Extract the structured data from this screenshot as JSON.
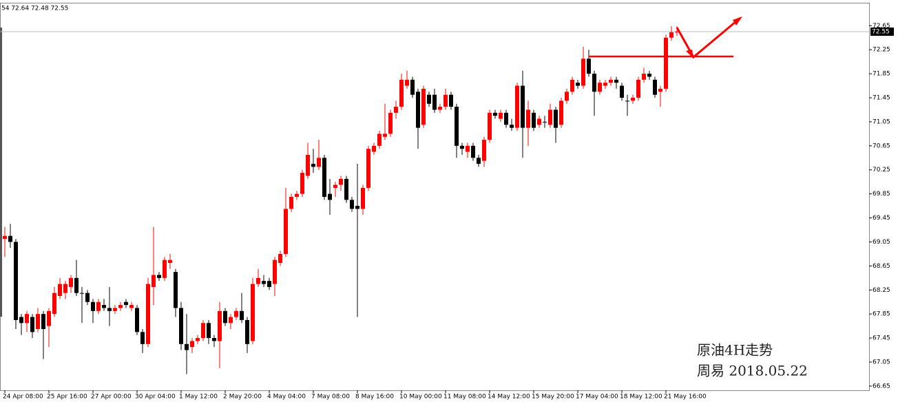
{
  "chart_data": {
    "type": "candlestick",
    "ohlc_label": "54 72.64 72.48 72.55",
    "annotations": [
      "原油4H走势",
      "周易  2018.05.22"
    ],
    "up_color": "#ff0000",
    "down_color": "#000000",
    "current_price": 72.55,
    "ylim": [
      66.58,
      73.02
    ],
    "yticks": [
      72.65,
      72.25,
      71.85,
      71.45,
      71.05,
      70.65,
      70.25,
      69.85,
      69.45,
      69.05,
      68.65,
      68.25,
      67.85,
      67.45,
      67.05,
      66.65
    ],
    "categories": [
      "24 Apr 08:00",
      null,
      null,
      null,
      null,
      null,
      null,
      null,
      "25 Apr 16:00",
      null,
      null,
      null,
      null,
      null,
      null,
      null,
      "27 Apr 00:00",
      null,
      null,
      null,
      null,
      null,
      null,
      null,
      "30 Apr 04:00",
      null,
      null,
      null,
      null,
      null,
      null,
      null,
      "1 May 12:00",
      null,
      null,
      null,
      null,
      null,
      null,
      null,
      "2 May 20:00",
      null,
      null,
      null,
      null,
      null,
      null,
      null,
      "4 May 04:00",
      null,
      null,
      null,
      null,
      null,
      null,
      null,
      "7 May 08:00",
      null,
      null,
      null,
      null,
      null,
      null,
      null,
      "8 May 16:00",
      null,
      null,
      null,
      null,
      null,
      null,
      null,
      "10 May 00:00",
      null,
      null,
      null,
      null,
      null,
      null,
      null,
      "11 May 08:00",
      null,
      null,
      null,
      null,
      null,
      null,
      null,
      "14 May 12:00",
      null,
      null,
      null,
      null,
      null,
      null,
      null,
      "15 May 20:00",
      null,
      null,
      null,
      null,
      null,
      null,
      null,
      "17 May 04:00",
      null,
      null,
      null,
      null,
      null,
      null,
      null,
      "18 May 12:00",
      null,
      null,
      null,
      null,
      null,
      null,
      null,
      "21 May 16:00",
      null,
      null
    ],
    "open": [
      69.1,
      69.15,
      69.05,
      67.8,
      67.7,
      67.8,
      67.6,
      67.85,
      67.65,
      67.85,
      68.15,
      68.2,
      68.3,
      68.45,
      68.2,
      68.2,
      68.05,
      67.9,
      68.0,
      67.95,
      67.9,
      67.95,
      68.05,
      67.95,
      67.95,
      67.55,
      67.35,
      68.3,
      68.5,
      68.45,
      68.7,
      68.55,
      67.95,
      67.35,
      67.3,
      67.4,
      67.45,
      67.7,
      67.45,
      67.4,
      67.9,
      67.7,
      67.8,
      67.9,
      67.75,
      67.4,
      68.35,
      68.4,
      68.4,
      68.35,
      68.7,
      68.85,
      69.6,
      69.8,
      69.85,
      70.15,
      70.35,
      70.3,
      70.45,
      69.85,
      69.95,
      70.0,
      70.1,
      69.75,
      69.65,
      69.6,
      69.95,
      70.55,
      70.65,
      70.8,
      70.85,
      71.2,
      71.3,
      71.65,
      71.75,
      71.55,
      71.0,
      71.5,
      71.5,
      71.25,
      71.3,
      71.5,
      71.3,
      70.65,
      70.55,
      70.65,
      70.45,
      70.4,
      70.75,
      71.2,
      71.1,
      71.2,
      71.0,
      70.95,
      71.65,
      70.95,
      71.2,
      71.0,
      71.05,
      71.0,
      71.25,
      71.0,
      71.4,
      71.55,
      71.7,
      71.65,
      72.1,
      71.85,
      71.55,
      71.65,
      71.7,
      71.75,
      71.65,
      71.4,
      71.4,
      71.45,
      71.75,
      71.85,
      71.75,
      71.55,
      71.6,
      72.45,
      72.54
    ],
    "high": [
      69.3,
      69.35,
      69.1,
      67.85,
      67.9,
      67.85,
      67.95,
      67.9,
      67.95,
      68.3,
      68.45,
      68.4,
      68.5,
      68.75,
      68.3,
      68.25,
      68.1,
      68.1,
      68.1,
      68.3,
      68.0,
      68.05,
      68.1,
      68.05,
      68.0,
      67.6,
      68.45,
      69.3,
      68.55,
      68.8,
      68.85,
      68.6,
      68.05,
      67.85,
      67.45,
      67.5,
      67.75,
      67.75,
      67.5,
      68.05,
      67.95,
      67.85,
      67.95,
      68.2,
      67.8,
      68.45,
      68.6,
      68.5,
      68.45,
      68.8,
      68.9,
      69.95,
      69.85,
      69.9,
      70.25,
      70.7,
      70.6,
      70.75,
      70.5,
      70.1,
      70.05,
      70.15,
      70.15,
      69.8,
      70.35,
      70.0,
      70.65,
      70.7,
      70.9,
      71.35,
      71.25,
      71.4,
      71.85,
      71.9,
      71.8,
      71.6,
      71.65,
      71.55,
      71.6,
      71.35,
      71.6,
      71.55,
      71.35,
      70.7,
      70.7,
      70.7,
      70.5,
      70.8,
      71.25,
      71.25,
      71.25,
      71.25,
      71.1,
      71.7,
      71.9,
      71.4,
      71.25,
      71.15,
      71.15,
      71.35,
      71.3,
      71.45,
      71.6,
      71.8,
      71.75,
      72.3,
      72.25,
      71.9,
      71.75,
      71.75,
      71.8,
      71.8,
      71.7,
      71.5,
      71.5,
      71.8,
      71.95,
      71.9,
      71.8,
      71.65,
      72.5,
      72.64,
      72.64
    ],
    "low": [
      68.8,
      68.95,
      67.6,
      67.5,
      67.55,
      67.45,
      67.55,
      67.1,
      67.3,
      67.8,
      68.1,
      68.1,
      68.2,
      68.15,
      67.7,
      68.0,
      67.7,
      67.85,
      67.9,
      67.65,
      67.85,
      67.9,
      67.95,
      67.9,
      67.5,
      67.2,
      67.3,
      68.0,
      68.4,
      68.4,
      68.6,
      67.8,
      67.25,
      66.85,
      67.2,
      67.35,
      67.4,
      67.35,
      67.3,
      66.95,
      67.65,
      67.6,
      67.75,
      67.7,
      67.2,
      67.35,
      68.3,
      68.3,
      68.25,
      68.15,
      68.65,
      68.8,
      69.55,
      69.75,
      69.8,
      70.1,
      70.2,
      70.25,
      69.75,
      69.5,
      69.8,
      69.9,
      69.7,
      69.55,
      67.8,
      69.5,
      69.9,
      70.5,
      70.6,
      70.75,
      70.8,
      71.1,
      71.25,
      71.6,
      71.45,
      70.6,
      70.95,
      71.3,
      71.2,
      71.2,
      71.25,
      71.25,
      70.45,
      70.5,
      70.45,
      70.4,
      70.3,
      70.3,
      70.7,
      71.1,
      71.05,
      70.95,
      70.9,
      70.9,
      70.45,
      70.65,
      70.9,
      70.95,
      70.95,
      70.95,
      70.7,
      70.95,
      71.35,
      71.5,
      71.6,
      71.6,
      71.8,
      71.15,
      71.5,
      71.6,
      71.65,
      71.6,
      71.4,
      71.15,
      71.35,
      71.4,
      71.7,
      71.75,
      71.45,
      71.3,
      71.55,
      72.4,
      72.48
    ],
    "close": [
      69.15,
      69.05,
      67.75,
      67.7,
      67.85,
      67.55,
      67.85,
      67.6,
      67.9,
      68.2,
      68.35,
      68.35,
      68.45,
      68.2,
      68.2,
      68.05,
      67.9,
      68.05,
      67.95,
      67.9,
      67.95,
      68.0,
      68.0,
      68.0,
      67.55,
      67.35,
      68.35,
      68.5,
      68.45,
      68.75,
      68.75,
      67.95,
      67.35,
      67.25,
      67.4,
      67.45,
      67.7,
      67.45,
      67.4,
      67.9,
      67.7,
      67.8,
      67.9,
      67.75,
      67.35,
      68.35,
      68.45,
      68.35,
      68.3,
      68.75,
      68.85,
      69.6,
      69.8,
      69.85,
      70.2,
      70.5,
      70.3,
      70.45,
      69.8,
      69.75,
      70.0,
      70.1,
      69.75,
      69.6,
      69.6,
      69.95,
      70.6,
      70.65,
      70.85,
      70.85,
      71.2,
      71.3,
      71.75,
      71.75,
      71.5,
      70.95,
      71.6,
      71.35,
      71.25,
      71.3,
      71.5,
      71.3,
      70.65,
      70.6,
      70.65,
      70.45,
      70.35,
      70.75,
      71.2,
      71.15,
      71.2,
      71.0,
      70.95,
      71.65,
      70.95,
      71.25,
      70.95,
      71.1,
      71.05,
      71.25,
      70.95,
      71.4,
      71.55,
      71.75,
      71.65,
      72.1,
      71.85,
      71.55,
      71.7,
      71.7,
      71.75,
      71.7,
      71.45,
      71.4,
      71.45,
      71.75,
      71.85,
      71.8,
      71.5,
      71.6,
      72.45,
      72.54,
      72.55
    ]
  }
}
